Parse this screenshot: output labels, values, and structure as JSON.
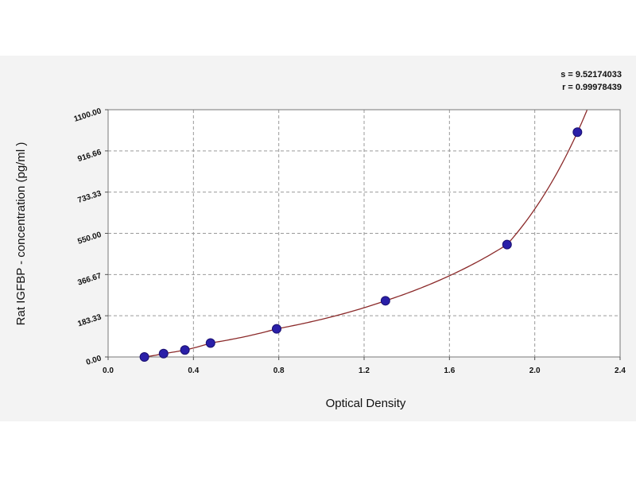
{
  "chart_data": {
    "type": "scatter",
    "title": "",
    "xlabel": "Optical Density",
    "ylabel": "Rat IGFBP - concentration (pg/ml )",
    "xlim": [
      0.0,
      2.4
    ],
    "ylim": [
      0.0,
      1100.0
    ],
    "x_ticks": [
      "0.0",
      "0.4",
      "0.8",
      "1.2",
      "1.6",
      "2.0",
      "2.4"
    ],
    "y_ticks": [
      "0.00",
      "183.33",
      "366.67",
      "550.00",
      "733.33",
      "916.66",
      "1100.00"
    ],
    "grid": true,
    "series": [
      {
        "x": [
          0.17,
          0.26,
          0.36,
          0.48,
          0.79,
          1.3,
          1.87,
          2.2
        ],
        "y": [
          0,
          15,
          31,
          62,
          125,
          250,
          500,
          1000
        ]
      }
    ],
    "fit_curve": "smooth curve through points",
    "annotations": {
      "fit_s": "s = 9.52174033",
      "fit_r": "r = 0.99978439"
    },
    "colors": {
      "points": "#2a1fa8",
      "curve": "#8b2a2a",
      "grid": "#9a9a9a",
      "axes": "#555555"
    }
  }
}
